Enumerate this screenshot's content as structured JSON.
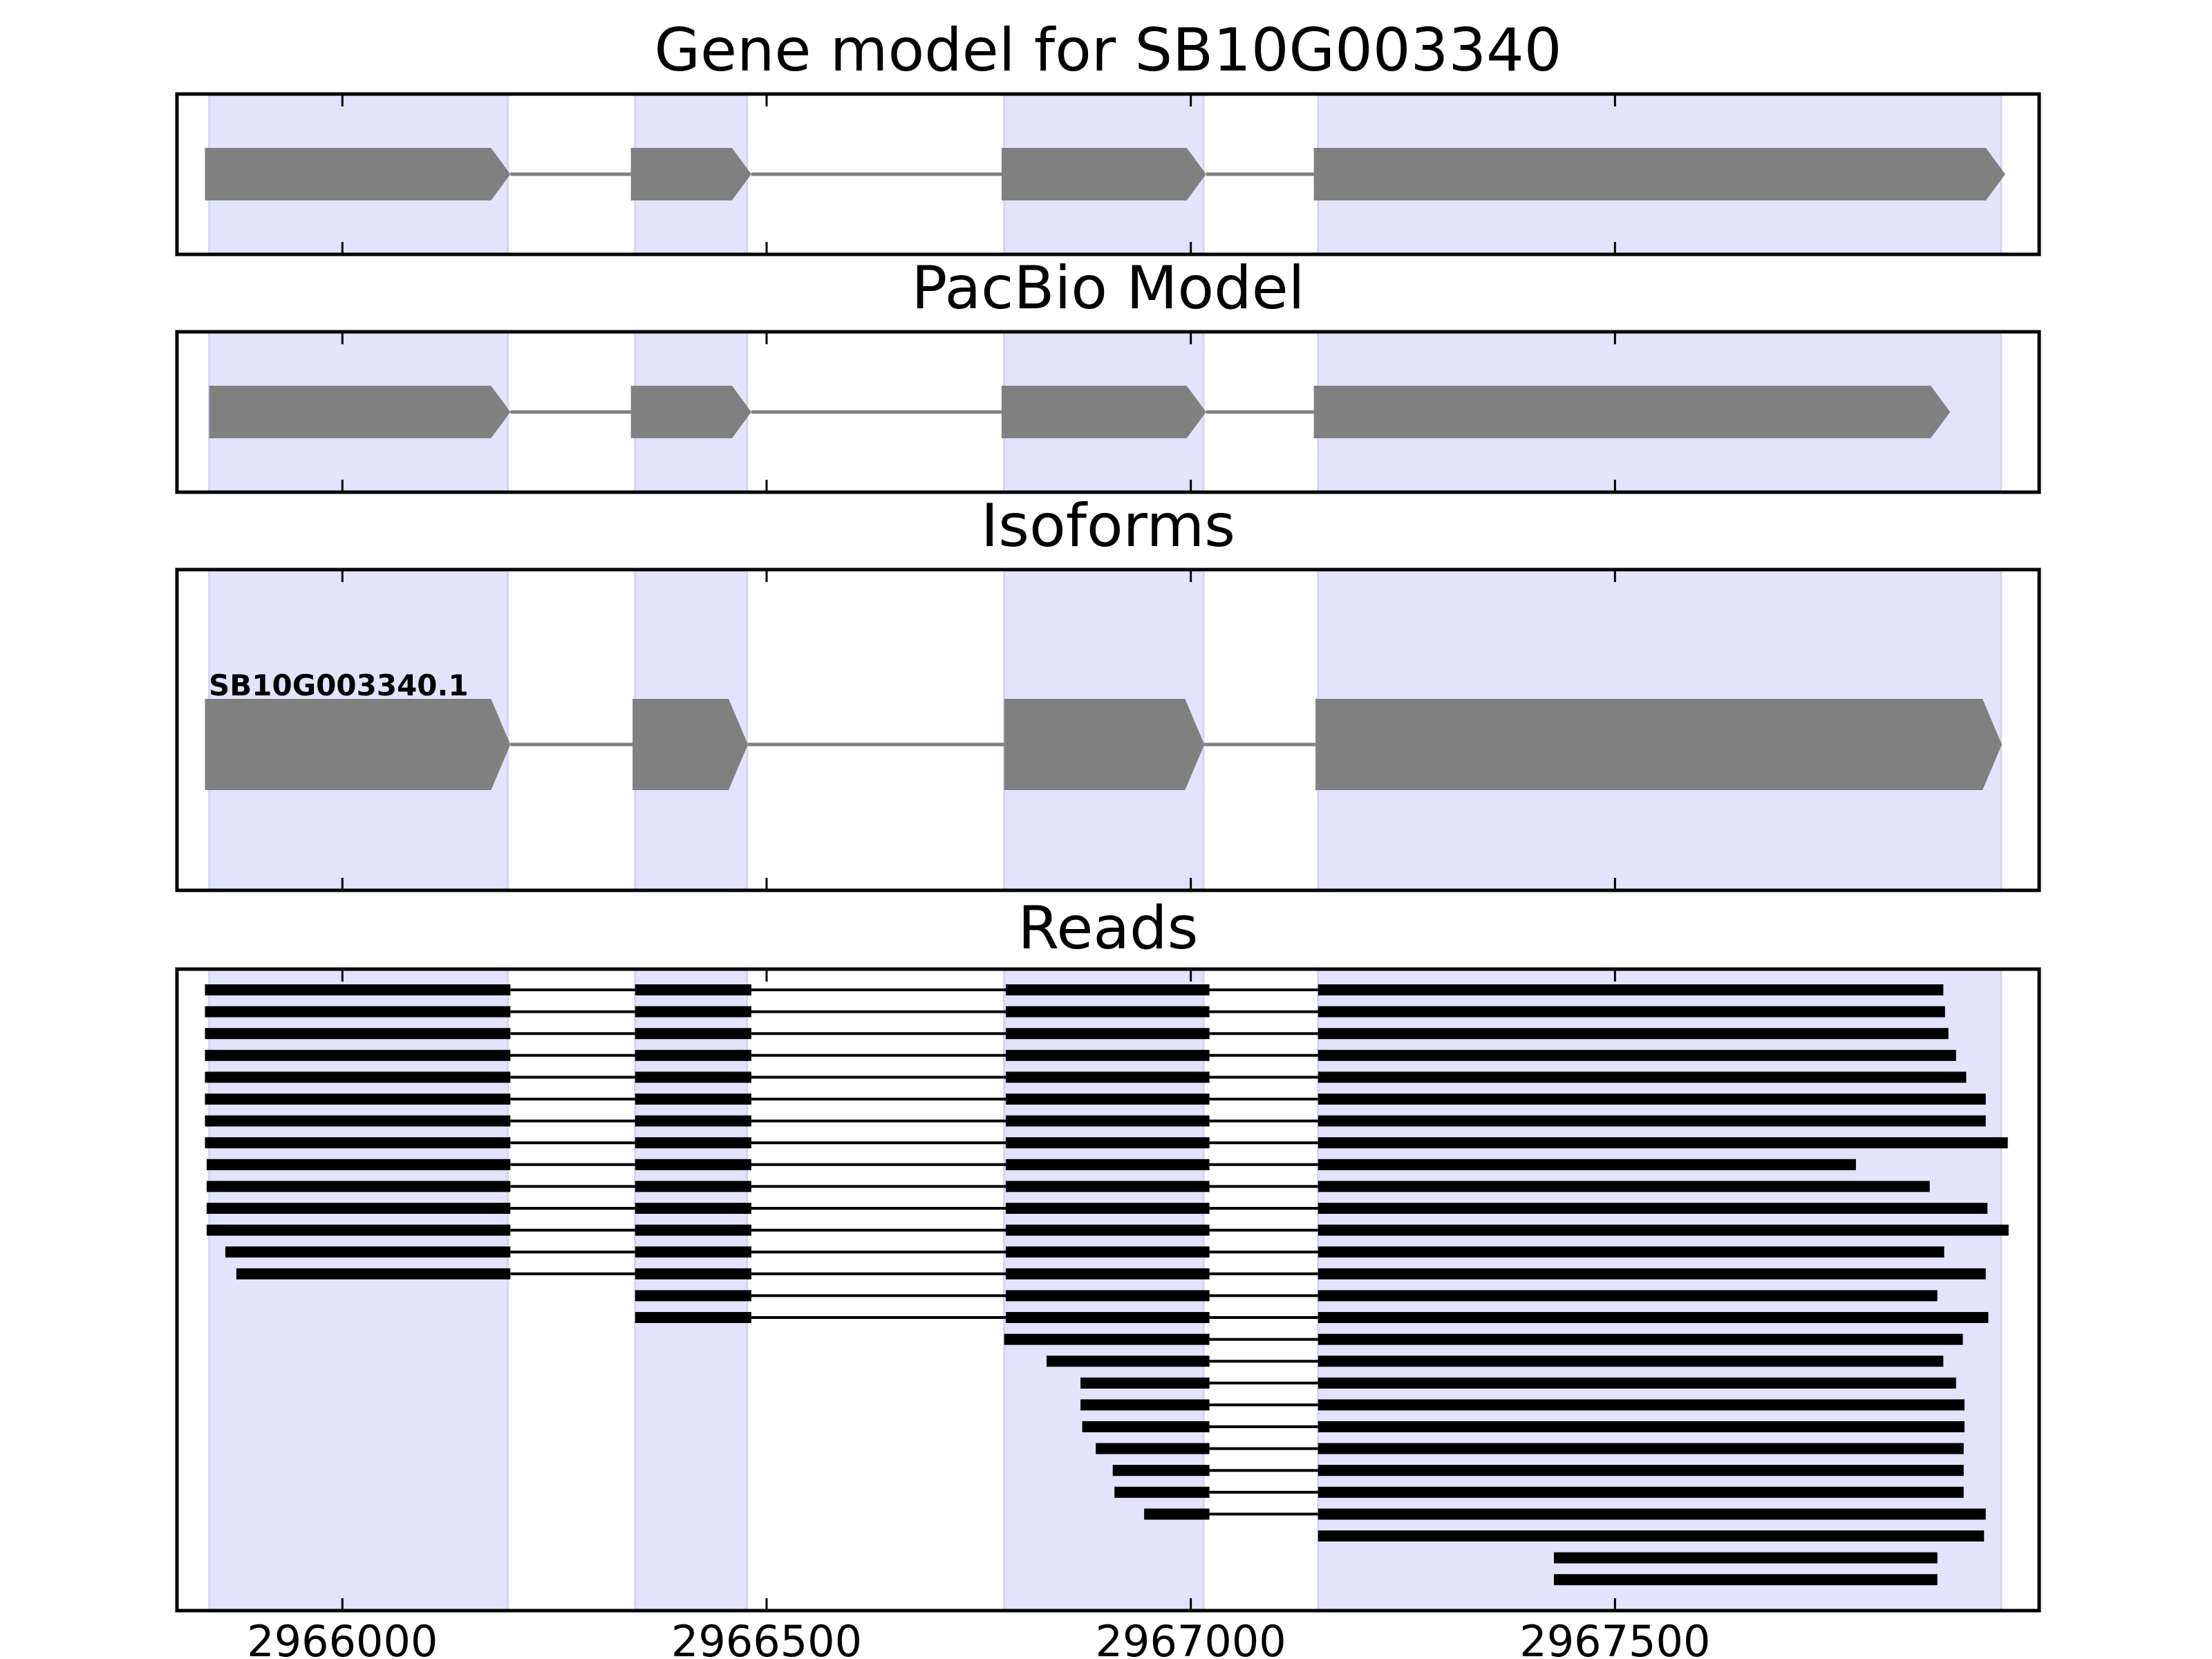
{
  "chart_data": {
    "type": "gene-model-diagram",
    "xlim": [
      2965805,
      2968000
    ],
    "x_ticks": [
      2966000,
      2966500,
      2967000,
      2967500
    ],
    "x_tick_labels": [
      "2966000",
      "2966500",
      "2967000",
      "2967500"
    ],
    "colors": {
      "exon_highlight": "#e3e3fd",
      "feature_fill": "#808080",
      "intron_line": "#808080",
      "read_color": "#000000",
      "axes": "#000000"
    },
    "highlight_exons": [
      [
        2965843,
        2966195
      ],
      [
        2966345,
        2966477
      ],
      [
        2966780,
        2967015
      ],
      [
        2967150,
        2967955
      ]
    ],
    "panels": [
      {
        "title": "Gene model for SB10G003340",
        "features": [
          [
            2965838,
            2966198
          ],
          [
            2966340,
            2966482
          ],
          [
            2966777,
            2967018
          ],
          [
            2967145,
            2967960
          ]
        ]
      },
      {
        "title": "PacBio Model",
        "features": [
          [
            2965843,
            2966198
          ],
          [
            2966340,
            2966482
          ],
          [
            2966777,
            2967018
          ],
          [
            2967145,
            2967895
          ]
        ]
      },
      {
        "title": "Isoforms",
        "isoform_label": "SB10G003340.1",
        "features": [
          [
            2965838,
            2966198
          ],
          [
            2966342,
            2966478
          ],
          [
            2966780,
            2967016
          ],
          [
            2967147,
            2967956
          ]
        ]
      },
      {
        "title": "Reads",
        "reads": [
          [
            [
              2965838,
              2966198
            ],
            [
              2966345,
              2966482
            ],
            [
              2966782,
              2967022
            ],
            [
              2967150,
              2967887
            ]
          ],
          [
            [
              2965838,
              2966198
            ],
            [
              2966345,
              2966482
            ],
            [
              2966782,
              2967022
            ],
            [
              2967150,
              2967889
            ]
          ],
          [
            [
              2965838,
              2966198
            ],
            [
              2966345,
              2966482
            ],
            [
              2966782,
              2967022
            ],
            [
              2967150,
              2967893
            ]
          ],
          [
            [
              2965838,
              2966198
            ],
            [
              2966345,
              2966482
            ],
            [
              2966782,
              2967022
            ],
            [
              2967150,
              2967902
            ]
          ],
          [
            [
              2965838,
              2966198
            ],
            [
              2966345,
              2966482
            ],
            [
              2966782,
              2967022
            ],
            [
              2967150,
              2967914
            ]
          ],
          [
            [
              2965838,
              2966198
            ],
            [
              2966345,
              2966482
            ],
            [
              2966782,
              2967022
            ],
            [
              2967150,
              2967937
            ]
          ],
          [
            [
              2965838,
              2966198
            ],
            [
              2966345,
              2966482
            ],
            [
              2966782,
              2967022
            ],
            [
              2967150,
              2967937
            ]
          ],
          [
            [
              2965838,
              2966198
            ],
            [
              2966345,
              2966482
            ],
            [
              2966782,
              2967022
            ],
            [
              2967150,
              2967963
            ]
          ],
          [
            [
              2965840,
              2966198
            ],
            [
              2966345,
              2966482
            ],
            [
              2966782,
              2967022
            ],
            [
              2967150,
              2967784
            ]
          ],
          [
            [
              2965840,
              2966198
            ],
            [
              2966345,
              2966482
            ],
            [
              2966782,
              2967022
            ],
            [
              2967150,
              2967871
            ]
          ],
          [
            [
              2965840,
              2966198
            ],
            [
              2966345,
              2966482
            ],
            [
              2966782,
              2967022
            ],
            [
              2967150,
              2967939
            ]
          ],
          [
            [
              2965840,
              2966198
            ],
            [
              2966345,
              2966482
            ],
            [
              2966782,
              2967022
            ],
            [
              2967150,
              2967964
            ]
          ],
          [
            [
              2965862,
              2966198
            ],
            [
              2966345,
              2966482
            ],
            [
              2966782,
              2967022
            ],
            [
              2967150,
              2967888
            ]
          ],
          [
            [
              2965875,
              2966198
            ],
            [
              2966345,
              2966482
            ],
            [
              2966782,
              2967022
            ],
            [
              2967150,
              2967937
            ]
          ],
          [
            [
              2966345,
              2966482
            ],
            [
              2966782,
              2967022
            ],
            [
              2967150,
              2967880
            ]
          ],
          [
            [
              2966345,
              2966482
            ],
            [
              2966782,
              2967022
            ],
            [
              2967150,
              2967940
            ]
          ],
          [
            [
              2966780,
              2967022
            ],
            [
              2967150,
              2967910
            ]
          ],
          [
            [
              2966830,
              2967022
            ],
            [
              2967150,
              2967887
            ]
          ],
          [
            [
              2966870,
              2967022
            ],
            [
              2967150,
              2967902
            ]
          ],
          [
            [
              2966870,
              2967022
            ],
            [
              2967150,
              2967912
            ]
          ],
          [
            [
              2966872,
              2967022
            ],
            [
              2967150,
              2967912
            ]
          ],
          [
            [
              2966888,
              2967022
            ],
            [
              2967150,
              2967911
            ]
          ],
          [
            [
              2966908,
              2967022
            ],
            [
              2967150,
              2967911
            ]
          ],
          [
            [
              2966910,
              2967022
            ],
            [
              2967150,
              2967911
            ]
          ],
          [
            [
              2966945,
              2967022
            ],
            [
              2967150,
              2967937
            ]
          ],
          [
            [
              2967150,
              2967935
            ]
          ],
          [
            [
              2967428,
              2967880
            ]
          ],
          [
            [
              2967428,
              2967880
            ]
          ]
        ]
      }
    ]
  }
}
